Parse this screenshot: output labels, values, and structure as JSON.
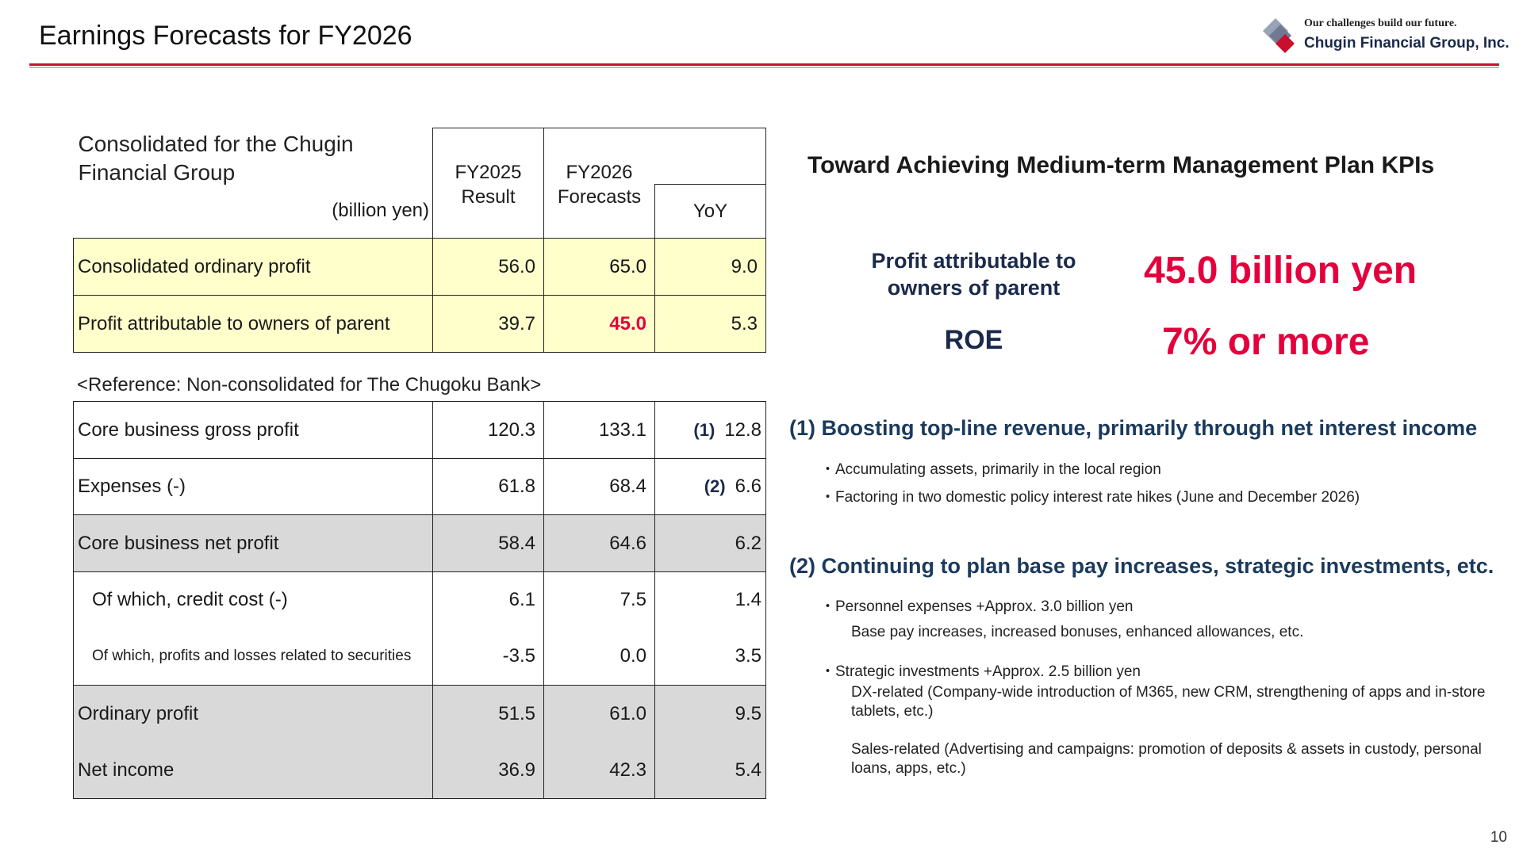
{
  "header": {
    "title": "Earnings Forecasts for FY2026",
    "tagline": "Our challenges build our future.",
    "company": "Chugin Financial Group, Inc.",
    "logo_icon": "diamond-logo-icon",
    "accent_color": "#c8102e"
  },
  "table1": {
    "title": "Consolidated for the Chugin Financial Group",
    "unit": "(billion yen)",
    "col_fy2025": "FY2025 Result",
    "col_fy2026": "FY2026 Forecasts",
    "col_yoy": "YoY",
    "rows": [
      {
        "label": "Consolidated ordinary profit",
        "fy2025": "56.0",
        "fy2026": "65.0",
        "yoy": "9.0"
      },
      {
        "label": "Profit attributable to owners of parent",
        "fy2025": "39.7",
        "fy2026": "45.0",
        "yoy": "5.3"
      }
    ]
  },
  "reference_note": "<Reference: Non-consolidated for The Chugoku Bank>",
  "table2": {
    "rows": [
      {
        "label": "Core business gross profit",
        "fy2025": "120.3",
        "fy2026": "133.1",
        "tag": "(1)",
        "yoy": "12.8"
      },
      {
        "label": "Expenses (-)",
        "fy2025": "61.8",
        "fy2026": "68.4",
        "tag": "(2)",
        "yoy": "6.6"
      },
      {
        "label": "Core business net profit",
        "fy2025": "58.4",
        "fy2026": "64.6",
        "yoy": "6.2"
      },
      {
        "label": "Of which, credit cost (-)",
        "fy2025": "6.1",
        "fy2026": "7.5",
        "yoy": "1.4"
      },
      {
        "label": "Of which, profits and losses related to securities",
        "fy2025": "-3.5",
        "fy2026": "0.0",
        "yoy": "3.5"
      },
      {
        "label": "Ordinary profit",
        "fy2025": "51.5",
        "fy2026": "61.0",
        "yoy": "9.5"
      },
      {
        "label": "Net income",
        "fy2025": "36.9",
        "fy2026": "42.3",
        "yoy": "5.4"
      }
    ]
  },
  "kpi": {
    "heading": "Toward Achieving Medium-term Management Plan KPIs",
    "items": [
      {
        "label": "Profit attributable to owners of parent",
        "value": "45.0 billion yen"
      },
      {
        "label": "ROE",
        "value": "7% or more"
      }
    ],
    "highlight_color": "#e3003c"
  },
  "sections": [
    {
      "heading": "(1) Boosting top-line revenue, primarily through net interest income",
      "bullets": [
        "・Accumulating assets, primarily in the local region",
        "・Factoring in two domestic policy interest rate hikes (June and December 2026)"
      ]
    },
    {
      "heading": "(2) Continuing to plan base pay increases, strategic investments, etc.",
      "bullets": [
        "・Personnel expenses +Approx. 3.0 billion yen",
        "・Strategic investments +Approx. 2.5 billion yen"
      ],
      "details": [
        "Base pay increases, increased bonuses, enhanced allowances, etc.",
        "DX-related (Company-wide introduction of M365, new CRM, strengthening of apps and in-store tablets, etc.)",
        "Sales-related (Advertising and campaigns: promotion of deposits & assets in custody, personal loans, apps, etc.)"
      ]
    }
  ],
  "page_number": "10"
}
